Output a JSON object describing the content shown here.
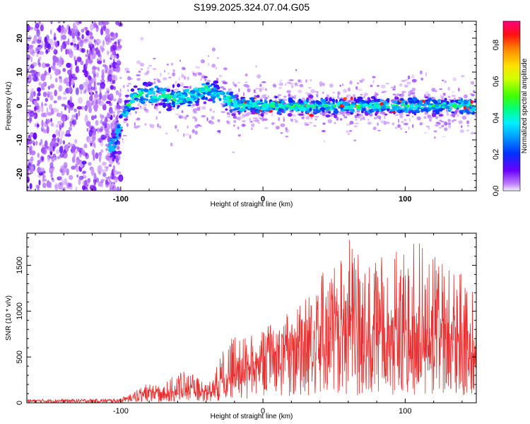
{
  "title": "S199.2025.324.07.04.G05",
  "chart_data": [
    {
      "type": "heatmap",
      "xlabel": "Height of straight line (km)",
      "ylabel": "Frequency (Hz)",
      "xlim": [
        -166,
        150
      ],
      "ylim": [
        -25,
        25
      ],
      "xticks": [
        -100,
        0,
        100
      ],
      "yticks": [
        -20,
        -10,
        0,
        10,
        20
      ],
      "colorbar": {
        "label": "Normalized spectral amplitude",
        "range": [
          0,
          0.93
        ],
        "ticks": [
          0.0,
          0.2,
          0.4,
          0.6,
          0.8
        ],
        "tick_labels": [
          "0.0",
          "0.2",
          "0.4",
          "0.6",
          "0.8"
        ]
      },
      "ridge": {
        "name": "dominant frequency",
        "x": [
          -105,
          -100,
          -95,
          -90,
          -80,
          -70,
          -60,
          -50,
          -40,
          -35,
          -30,
          -25,
          -20,
          -15,
          -10,
          0,
          10,
          20,
          40,
          60,
          80,
          100,
          120,
          150
        ],
        "y": [
          -12,
          -5,
          0,
          3,
          3.5,
          3,
          2,
          3.5,
          5,
          4,
          3,
          2,
          1,
          0,
          0.5,
          0,
          0,
          0,
          0,
          0,
          0,
          0,
          0,
          0
        ]
      }
    },
    {
      "type": "line",
      "xlabel": "Height of straight line (km)",
      "ylabel": "SNR (10 * v/v)",
      "xlim": [
        -166,
        150
      ],
      "ylim": [
        0,
        1850
      ],
      "xticks": [
        -100,
        0,
        100
      ],
      "yticks": [
        0,
        500,
        1000,
        1500
      ],
      "series": [
        {
          "name": "SNR",
          "color": "#e83030",
          "envelope_x": [
            -166,
            -100,
            -90,
            -85,
            -80,
            -75,
            -70,
            -65,
            -60,
            -55,
            -50,
            -45,
            -40,
            -35,
            -30,
            -25,
            -20,
            -15,
            -10,
            -5,
            0,
            5,
            10,
            20,
            30,
            40,
            50,
            60,
            70,
            80,
            90,
            100,
            110,
            120,
            130,
            140,
            150
          ],
          "envelope_mean": [
            20,
            22,
            60,
            110,
            130,
            120,
            110,
            110,
            150,
            140,
            160,
            120,
            110,
            120,
            250,
            270,
            310,
            360,
            420,
            450,
            480,
            520,
            570,
            650,
            750,
            800,
            820,
            820,
            810,
            790,
            760,
            740,
            700,
            700,
            700,
            690,
            680
          ],
          "envelope_peak": [
            50,
            60,
            120,
            200,
            230,
            200,
            260,
            300,
            400,
            330,
            340,
            260,
            220,
            280,
            600,
            650,
            800,
            800,
            700,
            800,
            850,
            850,
            950,
            1050,
            1250,
            1400,
            1500,
            1800,
            1700,
            1650,
            1600,
            1750,
            1800,
            1600,
            1500,
            1400,
            1150
          ]
        }
      ]
    }
  ]
}
